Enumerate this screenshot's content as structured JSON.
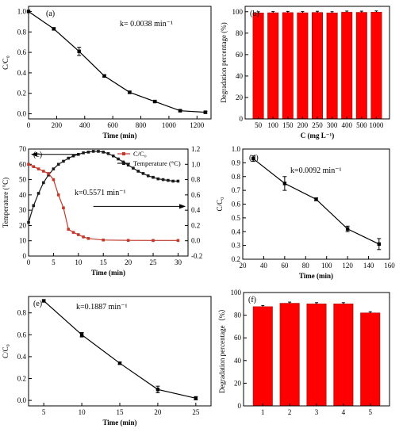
{
  "chart_data": [
    {
      "panel": "(a)",
      "type": "line",
      "annotation": "k= 0.0038 min⁻¹",
      "xlabel": "Time (min)",
      "ylabel": "C/C₀",
      "xlim": [
        0,
        1300
      ],
      "ylim": [
        -0.05,
        1.05
      ],
      "xticks": [
        0,
        200,
        400,
        600,
        800,
        1000,
        1200
      ],
      "yticks": [
        0.0,
        0.2,
        0.4,
        0.6,
        0.8,
        1.0
      ],
      "ytick_labels": [
        "0.0",
        "0.2",
        "0.4",
        "0.6",
        "0.8",
        "1.0"
      ],
      "x": [
        0,
        180,
        360,
        540,
        720,
        900,
        1080,
        1260
      ],
      "y": [
        1.0,
        0.83,
        0.61,
        0.37,
        0.21,
        0.12,
        0.03,
        0.015
      ],
      "err": [
        0,
        0.01,
        0.04,
        0.01,
        0.01,
        0.01,
        0.01,
        0.01
      ]
    },
    {
      "panel": "(b)",
      "type": "bar",
      "xlabel": "C (mg L⁻¹)",
      "ylabel": "Degradation percentage (%)",
      "ylim": [
        0,
        105
      ],
      "yticks": [
        0,
        20,
        40,
        60,
        80,
        100
      ],
      "categories": [
        "50",
        "100",
        "150",
        "200",
        "250",
        "300",
        "400",
        "500",
        "1000"
      ],
      "values": [
        98.8,
        99.0,
        99.2,
        99.0,
        99.3,
        98.9,
        99.5,
        99.4,
        99.6
      ],
      "color": "#ff0000"
    },
    {
      "panel": "(c)",
      "type": "line",
      "annotation": "k=0.5571 min⁻¹",
      "xlabel": "Time (min)",
      "ylabel_left": "Temperature (°C)",
      "xlim": [
        0,
        32
      ],
      "ylim_left": [
        0,
        70
      ],
      "ylim_right": [
        -0.2,
        1.2
      ],
      "xticks": [
        0,
        5,
        10,
        15,
        20,
        25,
        30
      ],
      "yticks_left": [
        0,
        10,
        20,
        30,
        40,
        50,
        60,
        70
      ],
      "yticks_right": [
        -0.2,
        0.0,
        0.2,
        0.4,
        0.6,
        0.8,
        1.0,
        1.2
      ],
      "ytick_labels_right": [
        "-0.2",
        "0.0",
        "0.2",
        "0.4",
        "0.6",
        "0.8",
        "1.0",
        "1.2"
      ],
      "legend": [
        "C/C₀",
        "Temperature (°C)"
      ],
      "series": [
        {
          "name": "C/C₀",
          "axis": "right",
          "color": "#c0392b",
          "x": [
            0,
            1,
            2,
            3,
            4,
            5,
            6,
            7,
            8,
            9,
            10,
            11,
            12,
            15,
            20,
            25,
            30
          ],
          "y": [
            1.0,
            0.97,
            0.94,
            0.91,
            0.88,
            0.8,
            0.6,
            0.43,
            0.15,
            0.11,
            0.08,
            0.05,
            0.03,
            0.01,
            0.005,
            0.004,
            0.004
          ]
        },
        {
          "name": "Temperature (°C)",
          "axis": "left",
          "color": "#1a1a1a",
          "x": [
            0,
            1,
            2,
            3,
            4,
            5,
            6,
            7,
            8,
            9,
            10,
            11,
            12,
            13,
            14,
            15,
            16,
            17,
            18,
            19,
            20,
            21,
            22,
            23,
            24,
            25,
            26,
            27,
            28,
            29,
            30
          ],
          "y": [
            22,
            33,
            41,
            48,
            53,
            57,
            60,
            62,
            64,
            65.5,
            66.5,
            67.5,
            68,
            68.5,
            68.5,
            68,
            67,
            65.5,
            63.5,
            61.5,
            59.5,
            57.5,
            55.5,
            54,
            52.5,
            51.5,
            50.5,
            50,
            49.5,
            49,
            49
          ]
        }
      ]
    },
    {
      "panel": "(d)",
      "type": "line",
      "annotation": "k=0.0092 min⁻¹",
      "xlabel": "Time (min)",
      "ylabel": "C/C₀",
      "xlim": [
        20,
        160
      ],
      "ylim": [
        0.2,
        1.0
      ],
      "xticks": [
        20,
        40,
        60,
        80,
        100,
        120,
        140,
        160
      ],
      "yticks": [
        0.2,
        0.3,
        0.4,
        0.5,
        0.6,
        0.7,
        0.8,
        0.9,
        1.0
      ],
      "ytick_labels": [
        "0.2",
        "0.3",
        "0.4",
        "0.5",
        "0.6",
        "0.7",
        "0.8",
        "0.9",
        "1.0"
      ],
      "x": [
        30,
        60,
        90,
        120,
        150
      ],
      "y": [
        0.93,
        0.75,
        0.635,
        0.42,
        0.31
      ],
      "err": [
        0.02,
        0.05,
        0.01,
        0.02,
        0.04
      ]
    },
    {
      "panel": "(e)",
      "type": "line",
      "annotation": "k=0.1887 min⁻¹",
      "xlabel": "Time (min)",
      "ylabel": "C/C₀",
      "xlim": [
        3,
        27
      ],
      "ylim": [
        -0.05,
        0.95
      ],
      "xticks": [
        5,
        10,
        15,
        20,
        25
      ],
      "yticks": [
        0.0,
        0.2,
        0.4,
        0.6,
        0.8
      ],
      "ytick_labels": [
        "0.0",
        "0.2",
        "0.4",
        "0.6",
        "0.8"
      ],
      "x": [
        5,
        10,
        15,
        20,
        25
      ],
      "y": [
        0.91,
        0.6,
        0.34,
        0.1,
        0.02
      ],
      "err": [
        0.01,
        0.02,
        0.01,
        0.03,
        0.015
      ]
    },
    {
      "panel": "(f)",
      "type": "bar",
      "ylabel": "Degradation percentage（%）",
      "ylim": [
        0,
        100
      ],
      "yticks": [
        0,
        20,
        40,
        60,
        80,
        100
      ],
      "categories": [
        "1",
        "2",
        "3",
        "4",
        "5"
      ],
      "values": [
        87.5,
        90.5,
        90.0,
        90.0,
        82.0
      ],
      "color": "#ff0000"
    }
  ]
}
